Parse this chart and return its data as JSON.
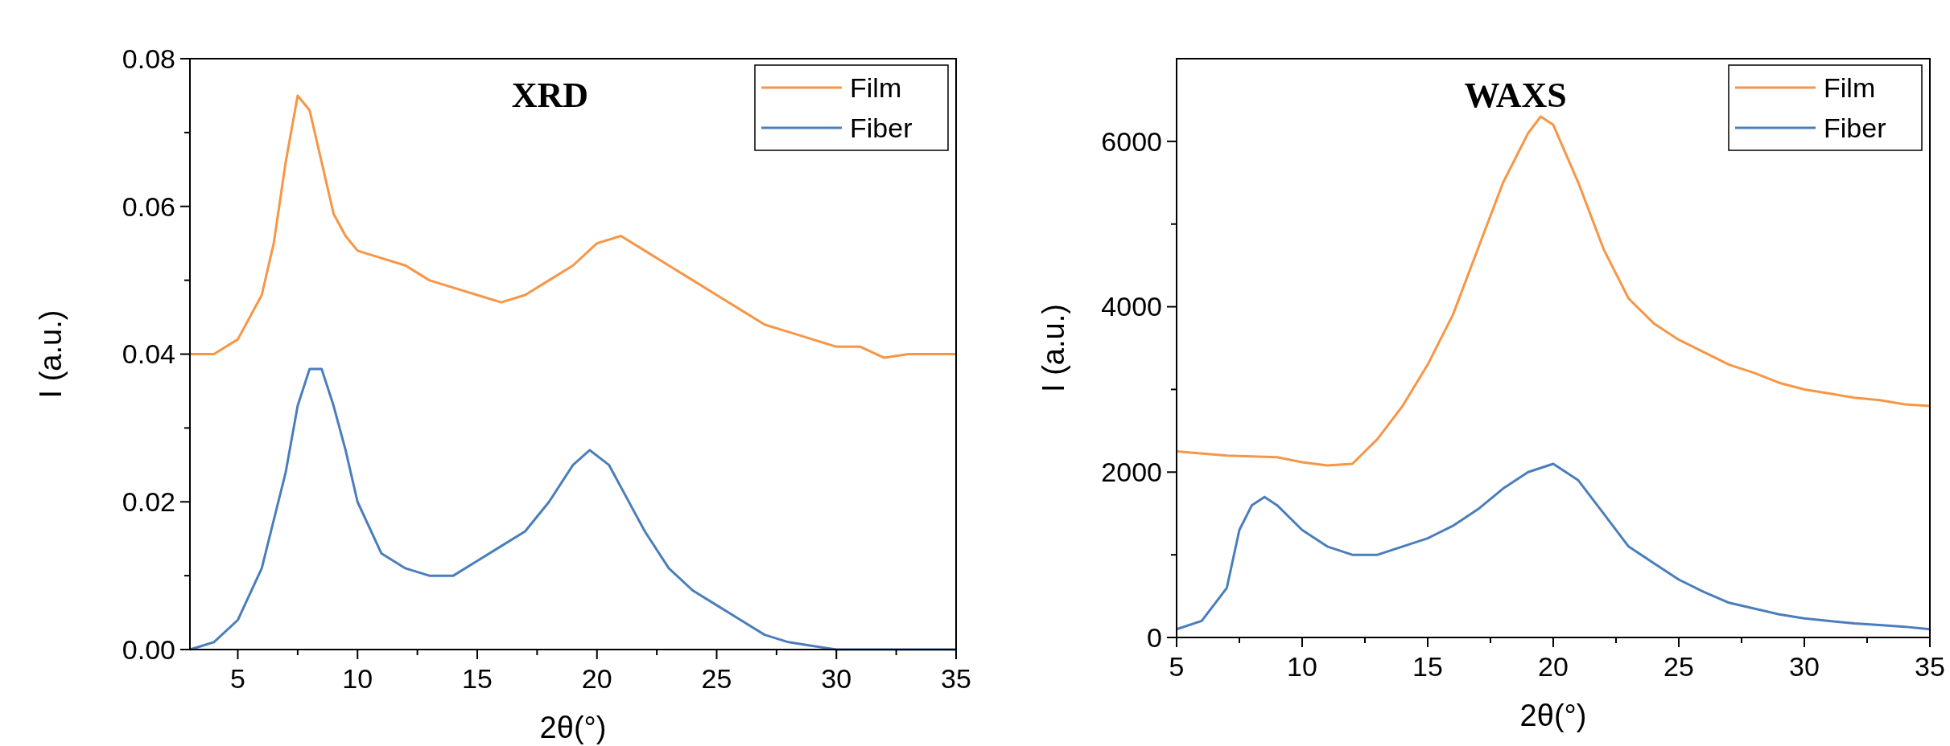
{
  "chart_data": [
    {
      "type": "line",
      "title": "XRD",
      "xlabel": "2θ(°)",
      "ylabel": "I (a.u.)",
      "legend": "top right",
      "grid": false,
      "marker": "none",
      "line_style": "solid",
      "xlim": [
        3,
        35
      ],
      "xticks": [
        5,
        {
          "value": 7.5,
          "label": null
        },
        10,
        {
          "value": 12.5,
          "label": null
        },
        15,
        {
          "value": 17.5,
          "label": null
        },
        20,
        {
          "value": 22.5,
          "label": null
        },
        25,
        {
          "value": 27.5,
          "label": null
        },
        30,
        {
          "value": 32.5,
          "label": null
        },
        35
      ],
      "ylim": [
        0,
        0.08
      ],
      "yticks": [
        {
          "value": 0,
          "label": "0.00"
        },
        {
          "value": 0.01,
          "label": null
        },
        {
          "value": 0.02,
          "label": "0.02"
        },
        {
          "value": 0.03,
          "label": null
        },
        {
          "value": 0.04,
          "label": "0.04"
        },
        {
          "value": 0.05,
          "label": null
        },
        {
          "value": 0.06,
          "label": "0.06"
        },
        {
          "value": 0.07,
          "label": null
        },
        {
          "value": 0.08,
          "label": "0.08"
        }
      ],
      "series": [
        {
          "name": "Film",
          "color": "#f79646",
          "x": [
            3,
            4,
            5,
            6,
            6.5,
            7,
            7.5,
            8,
            8.5,
            9,
            9.5,
            10,
            11,
            12,
            13,
            14,
            15,
            16,
            17,
            18,
            19,
            20,
            21,
            22,
            23,
            24,
            25,
            26,
            27,
            28,
            29,
            30,
            31,
            32,
            33,
            34,
            35
          ],
          "values": [
            0.04,
            0.04,
            0.042,
            0.048,
            0.055,
            0.066,
            0.075,
            0.073,
            0.066,
            0.059,
            0.056,
            0.054,
            0.053,
            0.052,
            0.05,
            0.049,
            0.048,
            0.047,
            0.048,
            0.05,
            0.052,
            0.055,
            0.056,
            0.054,
            0.052,
            0.05,
            0.048,
            0.046,
            0.044,
            0.043,
            0.042,
            0.041,
            0.041,
            0.0395,
            0.04,
            0.04,
            0.04
          ]
        },
        {
          "name": "Fiber",
          "color": "#4a7ebb",
          "x": [
            3,
            4,
            5,
            6,
            7,
            7.5,
            8,
            8.5,
            9,
            9.5,
            10,
            11,
            12,
            13,
            14,
            15,
            16,
            17,
            18,
            19,
            19.7,
            20.5,
            21,
            22,
            23,
            24,
            25,
            26,
            27,
            28,
            29,
            30,
            35
          ],
          "values": [
            0,
            0.001,
            0.004,
            0.011,
            0.024,
            0.033,
            0.038,
            0.038,
            0.033,
            0.027,
            0.02,
            0.013,
            0.011,
            0.01,
            0.01,
            0.012,
            0.014,
            0.016,
            0.02,
            0.025,
            0.027,
            0.025,
            0.022,
            0.016,
            0.011,
            0.008,
            0.006,
            0.004,
            0.002,
            0.001,
            0.0005,
            0,
            0
          ]
        }
      ]
    },
    {
      "type": "line",
      "title": "WAXS",
      "xlabel": "2θ(°)",
      "ylabel": "I (a.u.)",
      "legend": "top right",
      "grid": false,
      "marker": "none",
      "line_style": "solid",
      "xlim": [
        5,
        35
      ],
      "xticks": [
        5,
        {
          "value": 7.5,
          "label": null
        },
        10,
        {
          "value": 12.5,
          "label": null
        },
        15,
        {
          "value": 17.5,
          "label": null
        },
        20,
        {
          "value": 22.5,
          "label": null
        },
        25,
        {
          "value": 27.5,
          "label": null
        },
        30,
        {
          "value": 32.5,
          "label": null
        },
        35
      ],
      "ylim": [
        0,
        7000
      ],
      "yticks": [
        0,
        {
          "value": 1000,
          "label": null
        },
        2000,
        {
          "value": 3000,
          "label": null
        },
        4000,
        {
          "value": 5000,
          "label": null
        },
        6000
      ],
      "series": [
        {
          "name": "Film",
          "color": "#f79646",
          "x": [
            5,
            7,
            9,
            10,
            11,
            12,
            13,
            14,
            15,
            16,
            17,
            18,
            19,
            19.5,
            20,
            21,
            22,
            23,
            24,
            25,
            26,
            27,
            28,
            29,
            30,
            31,
            32,
            33,
            34,
            35
          ],
          "values": [
            2250,
            2200,
            2180,
            2120,
            2080,
            2100,
            2400,
            2800,
            3300,
            3900,
            4700,
            5500,
            6100,
            6300,
            6200,
            5500,
            4700,
            4100,
            3800,
            3600,
            3450,
            3300,
            3200,
            3080,
            3000,
            2950,
            2900,
            2870,
            2820,
            2800
          ]
        },
        {
          "name": "Fiber",
          "color": "#4a7ebb",
          "x": [
            5,
            6,
            7,
            7.5,
            8,
            8.5,
            9,
            10,
            11,
            12,
            13,
            14,
            15,
            16,
            17,
            18,
            19,
            20,
            21,
            22,
            23,
            24,
            25,
            26,
            27,
            28,
            29,
            30,
            31,
            32,
            33,
            34,
            35
          ],
          "values": [
            100,
            200,
            600,
            1300,
            1600,
            1700,
            1600,
            1300,
            1100,
            1000,
            1000,
            1100,
            1200,
            1350,
            1550,
            1800,
            2000,
            2100,
            1900,
            1500,
            1100,
            900,
            700,
            550,
            420,
            350,
            280,
            230,
            200,
            170,
            150,
            130,
            100
          ]
        }
      ]
    }
  ]
}
